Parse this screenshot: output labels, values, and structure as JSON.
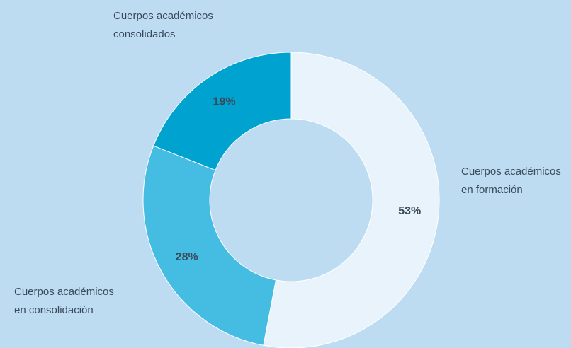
{
  "chart_data": {
    "type": "donut",
    "categories": [
      "Cuerpos académicos en formación",
      "Cuerpos académicos en consolidación",
      "Cuerpos académicos consolidados"
    ],
    "values": [
      53,
      28,
      19
    ],
    "value_labels": [
      "53%",
      "28%",
      "19%"
    ],
    "colors": [
      "#e8f3fb",
      "#45bde3",
      "#00a3d0"
    ]
  }
}
